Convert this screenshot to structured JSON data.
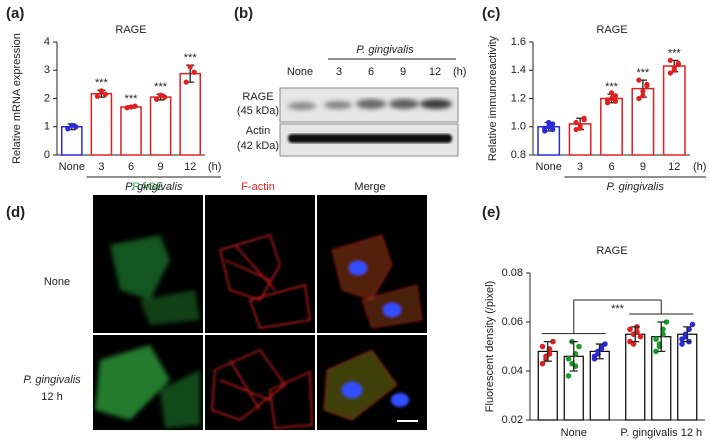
{
  "chart_data": [
    {
      "type": "bar",
      "panel_label": "(a)",
      "title": "RAGE",
      "y_label": "Relative mRNA expression",
      "categories": [
        "None",
        "3",
        "6",
        "9",
        "12"
      ],
      "x_unit": "(h)",
      "group_label": "P. gingivalis",
      "values": [
        1.0,
        2.17,
        1.7,
        2.05,
        2.88
      ],
      "errors": [
        0.1,
        0.12,
        0.04,
        0.1,
        0.3
      ],
      "points": [
        [
          0.93,
          1.05,
          1.0
        ],
        [
          2.08,
          2.27,
          2.15
        ],
        [
          1.67,
          1.7,
          1.73
        ],
        [
          1.97,
          2.12,
          2.05
        ],
        [
          2.58,
          3.12,
          2.93
        ]
      ],
      "colors": [
        "#2a2ad8",
        "#e02020",
        "#e02020",
        "#e02020",
        "#e02020"
      ],
      "annotations": [
        null,
        "***",
        "***",
        "***",
        "***"
      ],
      "ylim": [
        0,
        4
      ],
      "yticks": [
        0,
        1,
        2,
        3,
        4
      ]
    },
    {
      "type": "bar",
      "panel_label": "(c)",
      "title": "RAGE",
      "y_label": "Relative immunoreactivity",
      "categories": [
        "None",
        "3",
        "6",
        "9",
        "12"
      ],
      "x_unit": "(h)",
      "group_label": "P. gingivalis",
      "values": [
        1.0,
        1.02,
        1.2,
        1.27,
        1.43
      ],
      "errors": [
        0.03,
        0.04,
        0.03,
        0.06,
        0.04
      ],
      "points": [
        [
          0.97,
          1.0,
          1.02,
          0.99,
          1.03,
          0.98
        ],
        [
          0.98,
          1.01,
          1.05,
          1.03,
          0.99,
          1.06
        ],
        [
          1.17,
          1.2,
          1.22,
          1.19,
          1.24,
          1.18
        ],
        [
          1.2,
          1.25,
          1.3,
          1.33,
          1.22,
          1.29
        ],
        [
          1.38,
          1.42,
          1.45,
          1.47,
          1.4,
          1.44
        ]
      ],
      "colors": [
        "#2a2ad8",
        "#e02020",
        "#e02020",
        "#e02020",
        "#e02020"
      ],
      "annotations": [
        null,
        null,
        "***",
        "***",
        "***"
      ],
      "ylim": [
        0.8,
        1.6
      ],
      "yticks": [
        {
          "value": 0.8,
          "label": "0.8"
        },
        {
          "value": 1.0,
          "label": "1.0"
        },
        {
          "value": 1.2,
          "label": "1.2"
        },
        {
          "value": 1.4,
          "label": "1.4"
        },
        {
          "value": 1.6,
          "label": "1.6"
        }
      ]
    },
    {
      "type": "grouped_bar",
      "panel_label": "(e)",
      "title": "RAGE",
      "y_label": "Fluorescent density (/pixel)",
      "categories": [
        "None",
        "P. gingivalis 12 h"
      ],
      "bar_color": "#000000",
      "annotation": "***",
      "series": [
        {
          "color": "#e02020",
          "values": [
            0.048,
            0.055
          ],
          "errors": [
            0.004,
            0.003
          ],
          "points": [
            [
              0.043,
              0.046,
              0.049,
              0.052,
              0.05,
              0.045,
              0.047
            ],
            [
              0.052,
              0.055,
              0.058,
              0.054,
              0.057,
              0.051,
              0.056
            ]
          ]
        },
        {
          "color": "#1a9a2a",
          "values": [
            0.046,
            0.054
          ],
          "errors": [
            0.006,
            0.006
          ],
          "points": [
            [
              0.038,
              0.043,
              0.047,
              0.05,
              0.045,
              0.052,
              0.042
            ],
            [
              0.048,
              0.051,
              0.055,
              0.06,
              0.053,
              0.05,
              0.057
            ]
          ]
        },
        {
          "color": "#2a2ad8",
          "values": [
            0.048,
            0.055
          ],
          "errors": [
            0.003,
            0.003
          ],
          "points": [
            [
              0.045,
              0.047,
              0.049,
              0.051,
              0.046,
              0.048,
              0.05
            ],
            [
              0.051,
              0.054,
              0.057,
              0.059,
              0.053,
              0.055,
              0.052
            ]
          ]
        }
      ],
      "ylim": [
        0.02,
        0.08
      ],
      "yticks": [
        0.02,
        0.04,
        0.06,
        0.08
      ]
    }
  ],
  "blot": {
    "panel_label": "(b)",
    "group_label": "P. gingivalis",
    "lanes": [
      "None",
      "3",
      "6",
      "9",
      "12"
    ],
    "unit": "(h)",
    "rows": [
      {
        "name": "RAGE",
        "size": "(45 kDa)"
      },
      {
        "name": "Actin",
        "size": "(42 kDa)"
      }
    ]
  },
  "microscopy": {
    "panel_label": "(d)",
    "columns": [
      "RAGE",
      "F-actin",
      "Merge"
    ],
    "rows": [
      [
        "None"
      ],
      [
        "P. gingivalis",
        "12 h"
      ]
    ]
  }
}
